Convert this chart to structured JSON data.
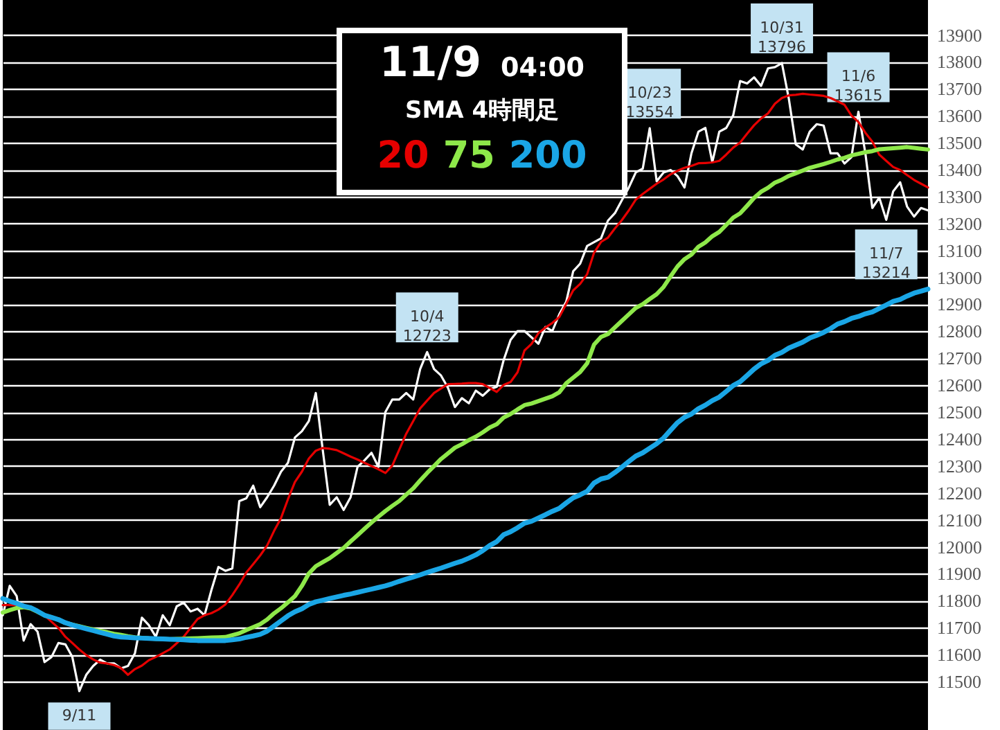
{
  "chart_data": {
    "type": "line",
    "title": "11/9",
    "subtitle": "04:00",
    "legend_title": "SMA 4時間足",
    "legend": "top",
    "grid": "y",
    "tick_labels": "y",
    "categories": [
      null,
      null,
      null,
      null,
      null,
      null,
      null,
      null,
      null,
      null,
      null,
      null,
      null,
      null,
      null,
      null,
      null,
      null,
      null,
      null,
      null,
      null,
      null,
      null,
      null,
      null,
      null,
      null,
      null,
      null,
      null,
      null,
      null,
      null,
      null,
      null,
      null,
      null,
      null,
      null,
      null,
      null,
      null,
      null,
      null,
      null,
      null,
      null,
      null,
      null,
      null,
      null,
      null,
      null,
      null,
      null,
      null,
      null,
      null,
      null,
      null,
      null,
      null,
      null,
      null,
      null,
      null,
      null,
      null,
      null,
      null,
      null,
      null,
      null,
      null,
      null,
      null,
      null,
      null,
      null,
      null,
      null,
      null,
      null,
      null,
      null,
      null,
      null,
      null,
      null,
      null,
      null,
      null,
      null,
      null,
      null,
      null,
      null,
      null,
      null,
      null,
      null,
      null,
      null,
      null,
      null,
      null,
      null,
      null,
      null,
      null,
      null,
      null,
      null,
      null,
      null,
      null,
      null,
      null,
      null,
      null,
      null,
      null,
      null,
      null,
      null,
      null,
      null,
      null,
      null,
      null,
      null,
      null,
      null
    ],
    "ylim": [
      11320,
      14030
    ],
    "yticks": [
      11500,
      11600,
      11700,
      11800,
      11900,
      12000,
      12100,
      12200,
      12300,
      12400,
      12500,
      12600,
      12700,
      12800,
      12900,
      13000,
      13100,
      13200,
      13300,
      13400,
      13500,
      13600,
      13700,
      13800,
      13900
    ],
    "series": [
      {
        "color": "#ffffff",
        "values": [
          11746,
          11855,
          11817,
          11652,
          11713,
          11685,
          11572,
          11591,
          11643,
          11638,
          11591,
          11464,
          11525,
          11558,
          11581,
          11567,
          11567,
          11549,
          11558,
          11605,
          11737,
          11709,
          11666,
          11746,
          11709,
          11779,
          11793,
          11760,
          11770,
          11746,
          11840,
          11925,
          11911,
          11920,
          12170,
          12180,
          12227,
          12147,
          12184,
          12227,
          12279,
          12312,
          12406,
          12429,
          12467,
          12571,
          12359,
          12156,
          12184,
          12137,
          12184,
          12297,
          12321,
          12349,
          12297,
          12500,
          12547,
          12547,
          12571,
          12547,
          12660,
          12723,
          12660,
          12636,
          12590,
          12519,
          12552,
          12533,
          12580,
          12561,
          12585,
          12594,
          12693,
          12768,
          12801,
          12801,
          12778,
          12754,
          12816,
          12801,
          12863,
          12910,
          13023,
          13051,
          13117,
          13131,
          13145,
          13211,
          13239,
          13287,
          13334,
          13390,
          13404,
          13554,
          13357,
          13390,
          13399,
          13376,
          13334,
          13461,
          13541,
          13555,
          13428,
          13541,
          13555,
          13602,
          13729,
          13720,
          13743,
          13711,
          13776,
          13781,
          13796,
          13663,
          13494,
          13475,
          13541,
          13569,
          13564,
          13461,
          13461,
          13423,
          13447,
          13615,
          13461,
          13258,
          13296,
          13214,
          13320,
          13353,
          13263,
          13226,
          13258,
          13249
        ]
      },
      {
        "name": "20",
        "color": "#e60000",
        "values": [
          11784,
          11784,
          11784,
          11780,
          11774,
          11761,
          11746,
          11722,
          11699,
          11666,
          11643,
          11619,
          11598,
          11582,
          11570,
          11567,
          11561,
          11550,
          11525,
          11546,
          11559,
          11579,
          11591,
          11605,
          11619,
          11642,
          11666,
          11699,
          11732,
          11746,
          11754,
          11767,
          11786,
          11821,
          11860,
          11904,
          11936,
          11968,
          12005,
          12059,
          12107,
          12177,
          12241,
          12279,
          12328,
          12357,
          12367,
          12364,
          12359,
          12347,
          12335,
          12324,
          12312,
          12300,
          12288,
          12274,
          12302,
          12361,
          12420,
          12467,
          12514,
          12543,
          12571,
          12588,
          12604,
          12605,
          12606,
          12608,
          12608,
          12604,
          12590,
          12575,
          12601,
          12612,
          12648,
          12729,
          12753,
          12793,
          12814,
          12831,
          12853,
          12902,
          12952,
          12976,
          13012,
          13092,
          13132,
          13148,
          13182,
          13213,
          13249,
          13289,
          13310,
          13329,
          13348,
          13364,
          13383,
          13396,
          13407,
          13414,
          13424,
          13425,
          13427,
          13433,
          13456,
          13482,
          13501,
          13534,
          13565,
          13590,
          13609,
          13645,
          13666,
          13676,
          13678,
          13682,
          13679,
          13677,
          13674,
          13666,
          13654,
          13641,
          13601,
          13577,
          13537,
          13504,
          13456,
          13433,
          13410,
          13399,
          13380,
          13362,
          13348,
          13334
        ]
      },
      {
        "name": "75",
        "color": "#8ee84a",
        "values": [
          11756,
          11765,
          11773,
          11776,
          11771,
          11759,
          11746,
          11738,
          11730,
          11718,
          11711,
          11705,
          11699,
          11693,
          11688,
          11683,
          11677,
          11673,
          11668,
          11664,
          11662,
          11660,
          11659,
          11658,
          11657,
          11658,
          11659,
          11660,
          11661,
          11662,
          11663,
          11664,
          11665,
          11672,
          11679,
          11691,
          11702,
          11713,
          11730,
          11753,
          11772,
          11794,
          11817,
          11855,
          11901,
          11928,
          11943,
          11958,
          11977,
          11996,
          12020,
          12043,
          12067,
          12090,
          12112,
          12133,
          12152,
          12170,
          12194,
          12217,
          12246,
          12274,
          12300,
          12326,
          12347,
          12368,
          12381,
          12396,
          12409,
          12425,
          12443,
          12455,
          12480,
          12493,
          12510,
          12526,
          12532,
          12541,
          12550,
          12559,
          12574,
          12607,
          12628,
          12649,
          12681,
          12751,
          12779,
          12790,
          12815,
          12839,
          12863,
          12887,
          12901,
          12920,
          12938,
          12965,
          13004,
          13041,
          13068,
          13085,
          13114,
          13130,
          13153,
          13169,
          13195,
          13222,
          13238,
          13266,
          13295,
          13318,
          13333,
          13352,
          13363,
          13377,
          13387,
          13397,
          13407,
          13414,
          13421,
          13429,
          13438,
          13444,
          13453,
          13459,
          13465,
          13469,
          13476,
          13478,
          13480,
          13482,
          13484,
          13481,
          13478,
          13475
        ]
      },
      {
        "name": "200",
        "color": "#1aa6e6",
        "values": [
          11808,
          11798,
          11790,
          11780,
          11774,
          11761,
          11746,
          11738,
          11730,
          11718,
          11710,
          11703,
          11696,
          11689,
          11682,
          11676,
          11669,
          11665,
          11664,
          11662,
          11661,
          11660,
          11659,
          11658,
          11657,
          11656,
          11655,
          11653,
          11652,
          11652,
          11652,
          11652,
          11652,
          11655,
          11658,
          11664,
          11669,
          11675,
          11687,
          11706,
          11725,
          11744,
          11759,
          11770,
          11786,
          11796,
          11802,
          11808,
          11814,
          11820,
          11825,
          11831,
          11837,
          11843,
          11849,
          11855,
          11863,
          11872,
          11880,
          11888,
          11896,
          11905,
          11913,
          11921,
          11930,
          11939,
          11947,
          11958,
          11970,
          11986,
          12005,
          12019,
          12045,
          12056,
          12071,
          12088,
          12095,
          12107,
          12119,
          12132,
          12143,
          12163,
          12182,
          12193,
          12206,
          12237,
          12252,
          12258,
          12276,
          12296,
          12317,
          12337,
          12349,
          12366,
          12383,
          12404,
          12433,
          12461,
          12481,
          12493,
          12513,
          12526,
          12543,
          12556,
          12577,
          12599,
          12613,
          12636,
          12660,
          12679,
          12692,
          12711,
          12722,
          12738,
          12749,
          12760,
          12775,
          12785,
          12796,
          12810,
          12827,
          12836,
          12848,
          12855,
          12865,
          12872,
          12885,
          12898,
          12911,
          12918,
          12931,
          12942,
          12949,
          12957
        ]
      }
    ],
    "annotations": [
      {
        "text": "9/11",
        "y": 11464
      },
      {
        "text": "10/4\n12723",
        "y": 12723
      },
      {
        "text": "10/23\n13554",
        "y": 13554
      },
      {
        "text": "10/31\n13796",
        "y": 13796
      },
      {
        "text": "11/6\n13615",
        "y": 13615
      },
      {
        "text": "11/7\n13214",
        "y": 13214
      }
    ]
  }
}
